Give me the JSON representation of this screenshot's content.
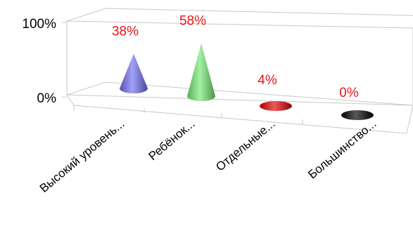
{
  "chart_data": {
    "type": "bar",
    "bar_shape": "cone",
    "title": "",
    "xlabel": "",
    "ylabel": "",
    "categories": [
      "Высокий уровень...",
      "Ребёнок...",
      "Отдельные...",
      "Большинство..."
    ],
    "values": [
      38,
      58,
      4,
      0
    ],
    "value_labels": [
      "38%",
      "58%",
      "4%",
      "0%"
    ],
    "colors": [
      "#6f6ff0",
      "#73e873",
      "#e00000",
      "#000000"
    ],
    "y_ticks": [
      "100%",
      "0%"
    ],
    "ylim": [
      0,
      100
    ],
    "grid": false,
    "legend": "none",
    "label_color": "#e8161b"
  }
}
